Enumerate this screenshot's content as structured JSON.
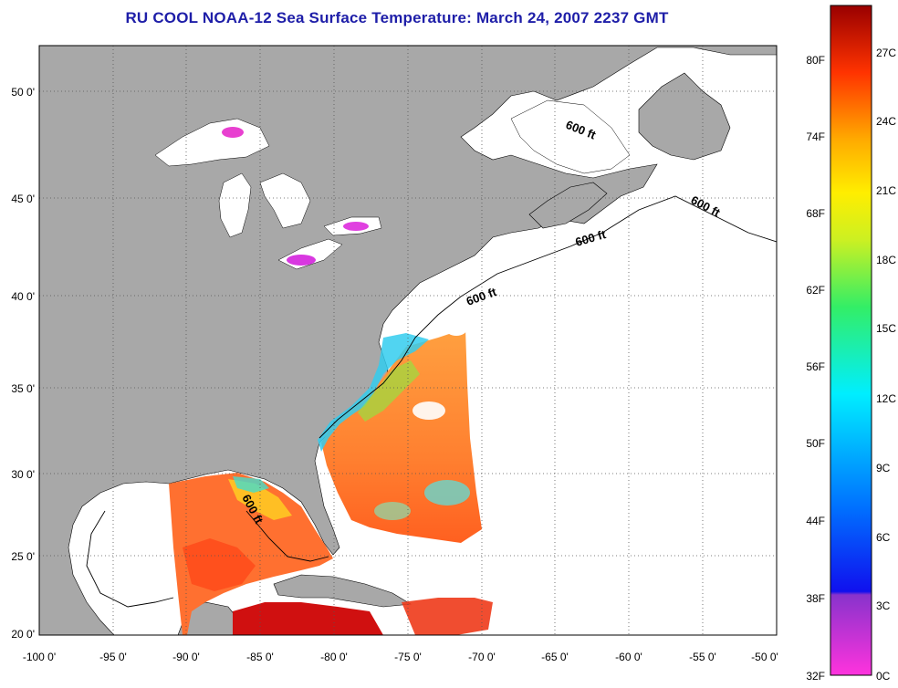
{
  "title": "RU COOL  NOAA-12  Sea Surface Temperature:  March 24, 2007 2237 GMT",
  "lat_labels": [
    "50 0'",
    "45 0'",
    "40 0'",
    "35 0'",
    "30 0'",
    "25 0'",
    "20 0'"
  ],
  "lon_labels": [
    "-100 0'",
    "-95 0'",
    "-90 0'",
    "-85 0'",
    "-80 0'",
    "-75 0'",
    "-70 0'",
    "-65 0'",
    "-60 0'",
    "-55 0'",
    "-50 0'"
  ],
  "contour_labels": [
    "600 ft",
    "600 ft",
    "600 ft",
    "600 ft",
    "600 ft"
  ],
  "colorbar": {
    "fahrenheit": [
      "80F",
      "74F",
      "68F",
      "62F",
      "56F",
      "50F",
      "44F",
      "38F",
      "32F"
    ],
    "celsius": [
      "27C",
      "24C",
      "21C",
      "18C",
      "15C",
      "12C",
      "9C",
      "6C",
      "3C",
      "0C"
    ]
  },
  "colors": {
    "title": "#1e1ea8",
    "land": "#a8a8a8",
    "no_data": "#ffffff",
    "grid": "#555555"
  }
}
